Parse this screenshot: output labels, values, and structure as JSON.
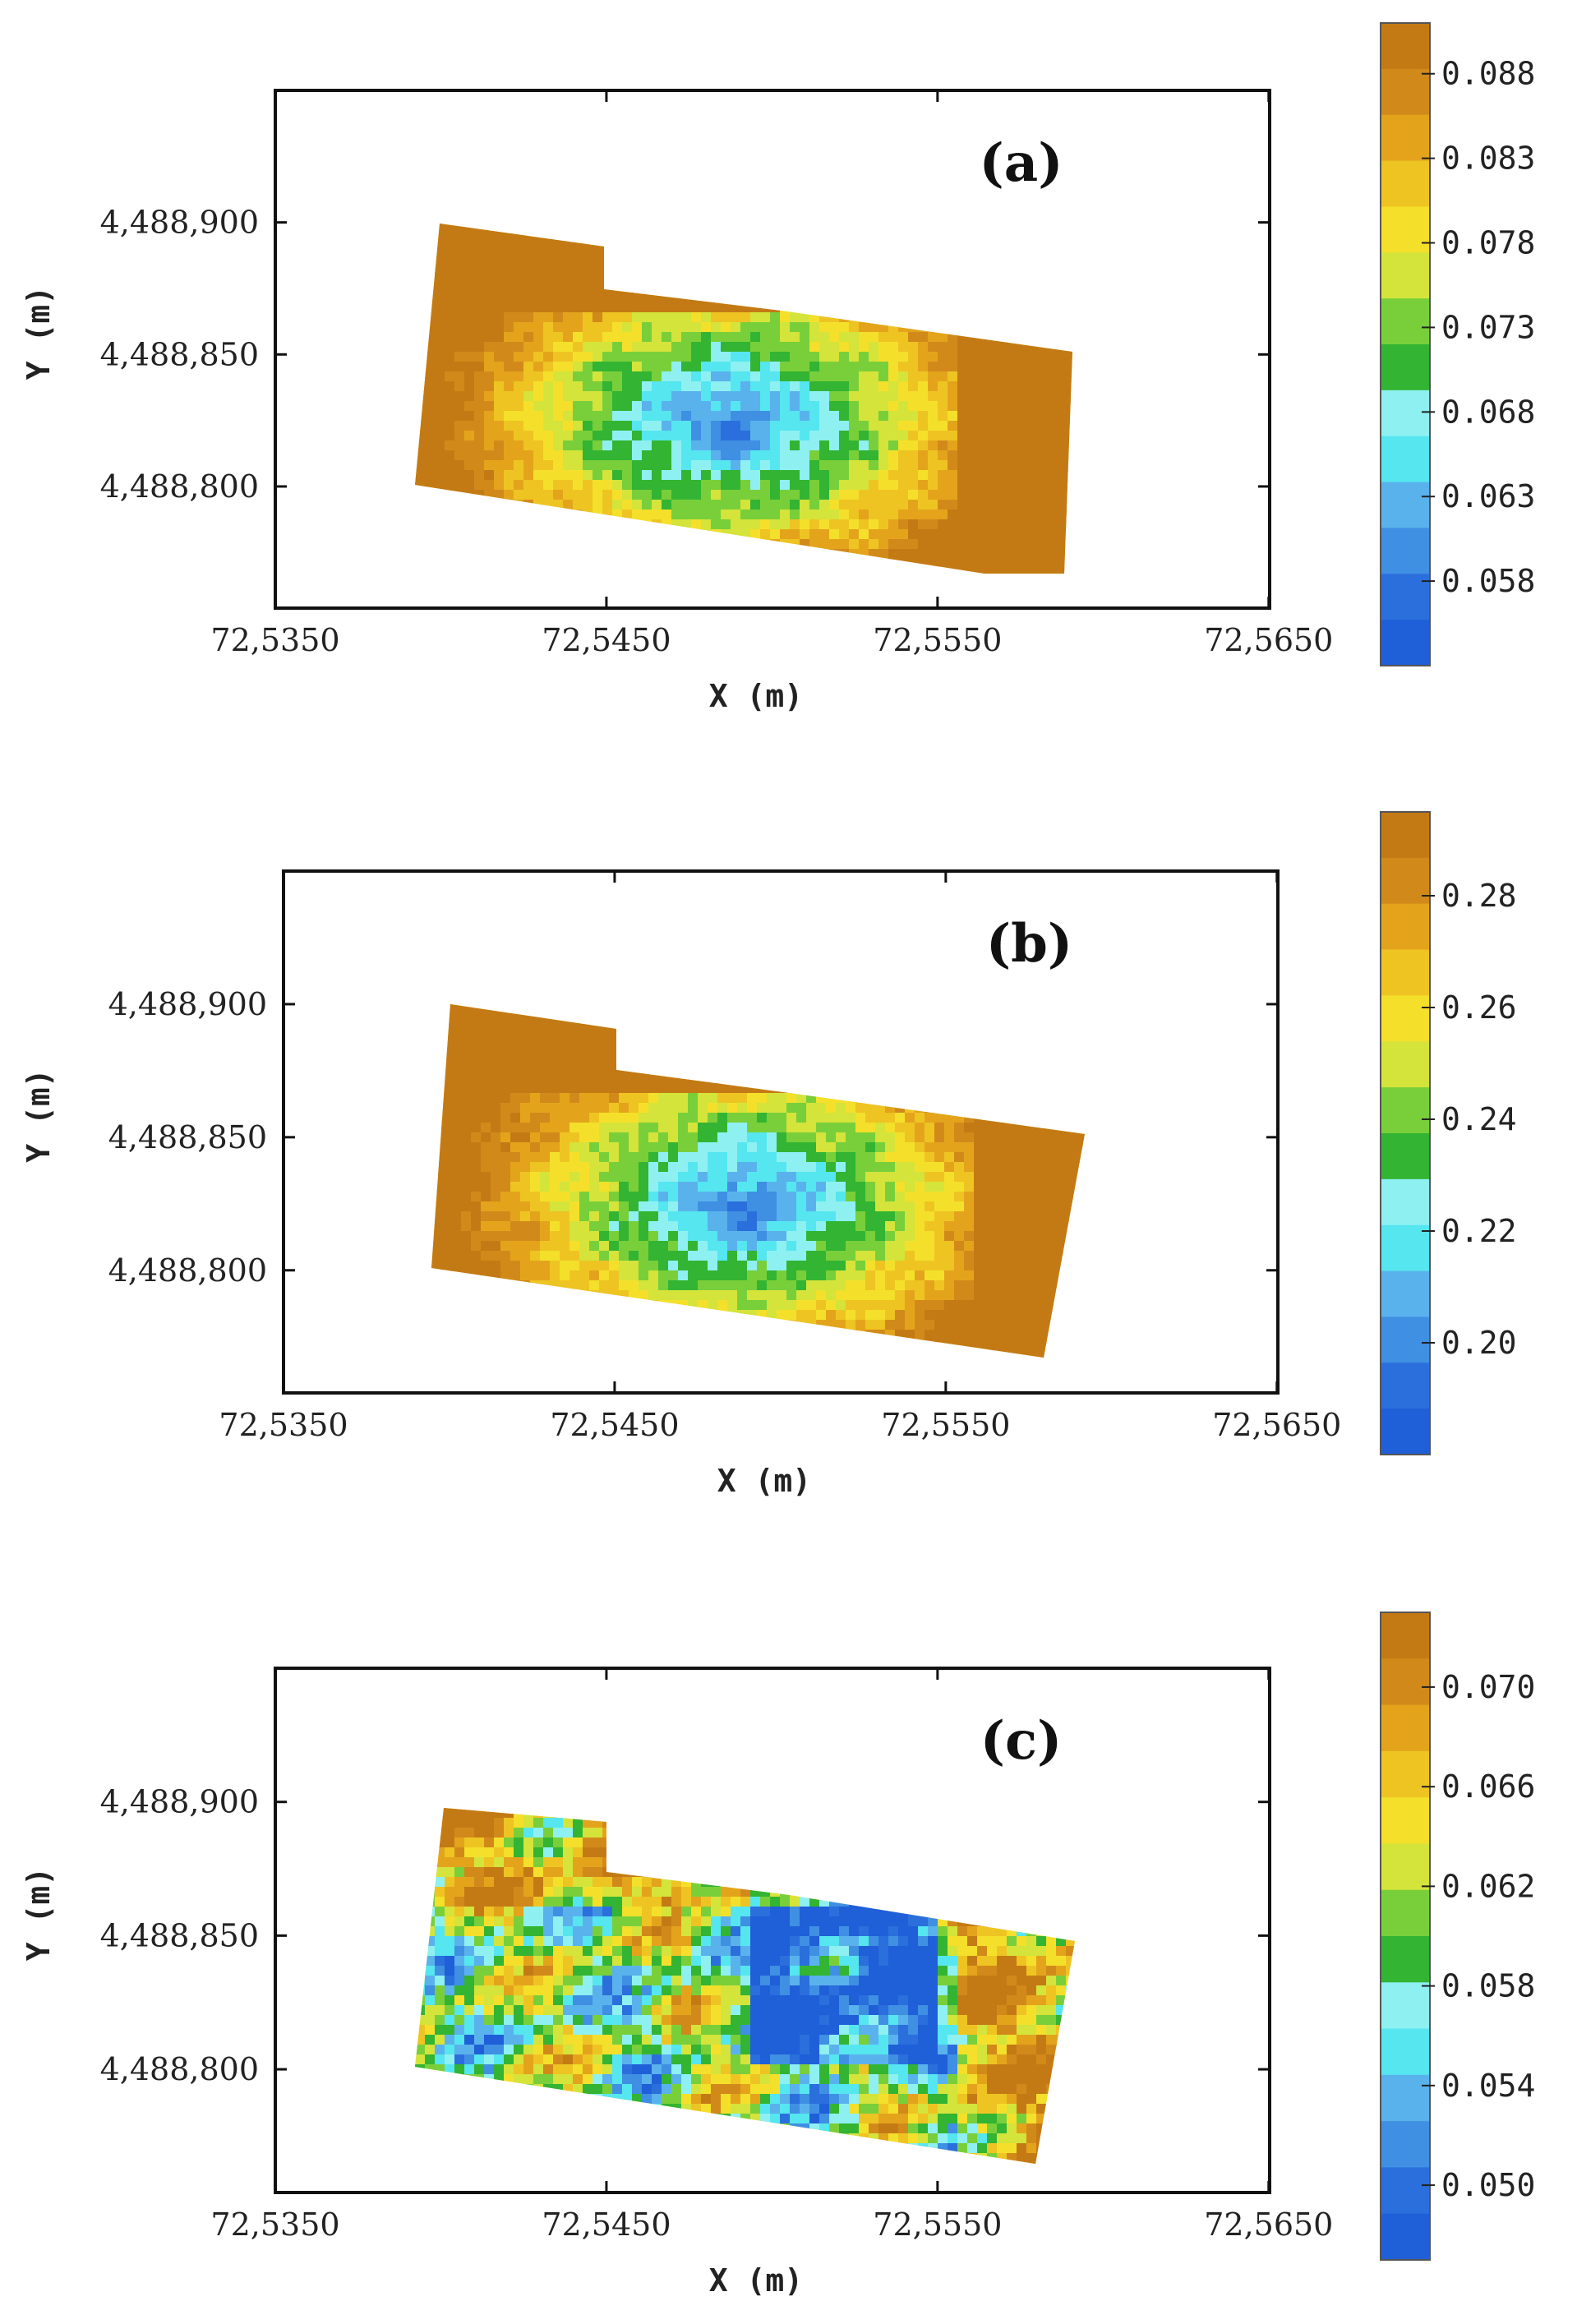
{
  "chart_data": [
    {
      "type": "heatmap",
      "panel_label": "(a)",
      "xlabel": "X (m)",
      "ylabel": "Y (m)",
      "x_ticks": [
        "72,5350",
        "72,5450",
        "72,5550",
        "72,5650"
      ],
      "y_ticks": [
        "4,488,900",
        "4,488,850",
        "4,488,800"
      ],
      "colorbar_ticks": [
        "0.088",
        "0.083",
        "0.078",
        "0.073",
        "0.068",
        "0.063",
        "0.058"
      ],
      "colorbar_range": [
        0.053,
        0.091
      ],
      "grid": false
    },
    {
      "type": "heatmap",
      "panel_label": "(b)",
      "xlabel": "X (m)",
      "ylabel": "Y (m)",
      "x_ticks": [
        "72,5350",
        "72,5450",
        "72,5550",
        "72,5650"
      ],
      "y_ticks": [
        "4,488,900",
        "4,488,850",
        "4,488,800"
      ],
      "colorbar_ticks": [
        "0.28",
        "0.26",
        "0.24",
        "0.22",
        "0.20"
      ],
      "colorbar_range": [
        0.18,
        0.295
      ],
      "grid": false
    },
    {
      "type": "heatmap",
      "panel_label": "(c)",
      "xlabel": "X (m)",
      "ylabel": "Y (m)",
      "x_ticks": [
        "72,5350",
        "72,5450",
        "72,5550",
        "72,5650"
      ],
      "y_ticks": [
        "4,488,900",
        "4,488,850",
        "4,488,800"
      ],
      "colorbar_ticks": [
        "0.070",
        "0.066",
        "0.062",
        "0.058",
        "0.054",
        "0.050"
      ],
      "colorbar_range": [
        0.047,
        0.073
      ],
      "grid": false
    }
  ],
  "colors": {
    "palette_top_to_bottom": [
      "#c47a14",
      "#d18a1a",
      "#e3a41c",
      "#eec423",
      "#f4e02a",
      "#d4e43a",
      "#79cf3a",
      "#33b432",
      "#8ff0f2",
      "#55e6ef",
      "#5ab2ec",
      "#3f8fe3",
      "#2a6fdc",
      "#1f5fd8"
    ]
  }
}
